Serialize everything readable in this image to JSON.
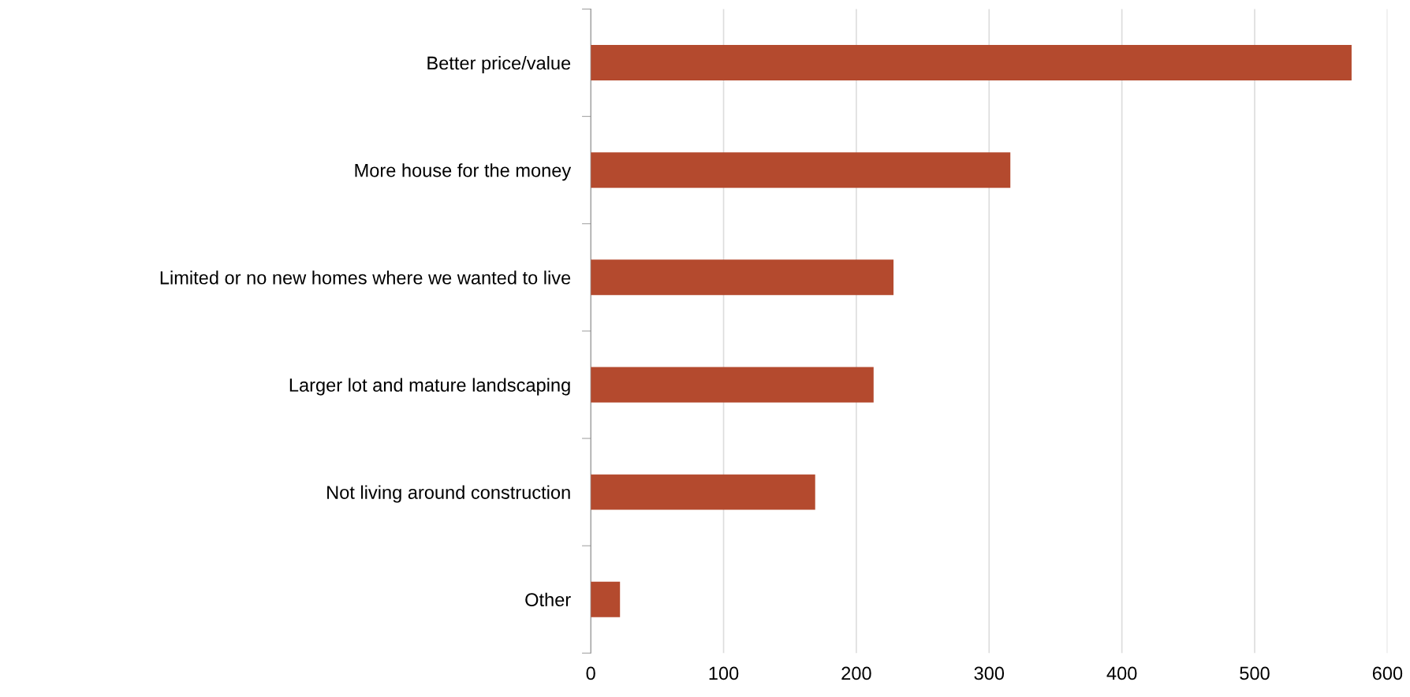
{
  "chart_data": {
    "type": "bar",
    "orientation": "horizontal",
    "categories": [
      "Better price/value",
      "More house for the money",
      "Limited or no new homes where we wanted to live",
      "Larger lot and mature landscaping",
      "Not living around construction",
      "Other"
    ],
    "values": [
      573,
      316,
      228,
      213,
      169,
      22
    ],
    "color": "#b44a2e",
    "xlim": [
      0,
      600
    ],
    "xticks": [
      0,
      100,
      200,
      300,
      400,
      500,
      600
    ],
    "grid": "x",
    "legend": false
  }
}
